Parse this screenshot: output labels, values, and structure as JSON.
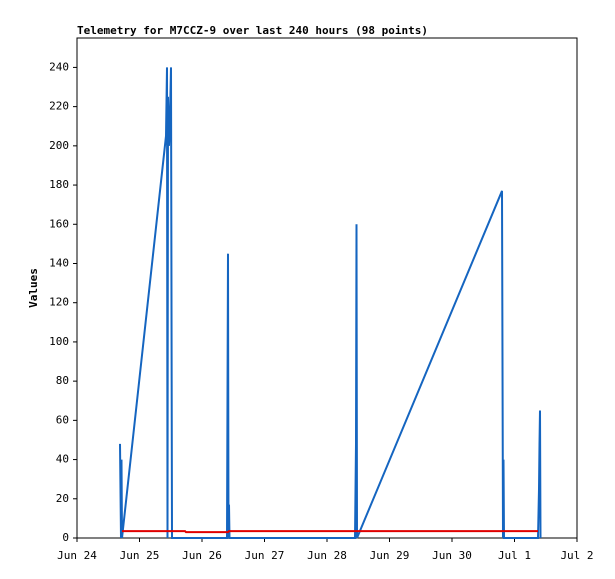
{
  "chart_data": {
    "type": "line",
    "title": "Telemetry for M7CCZ-9 over last 240 hours (98 points)",
    "y_label": "Values",
    "xlim": [
      0,
      8
    ],
    "xticks": [
      {
        "value": 0,
        "label": "Jun 24"
      },
      {
        "value": 1,
        "label": "Jun 25"
      },
      {
        "value": 2,
        "label": "Jun 26"
      },
      {
        "value": 3,
        "label": "Jun 27"
      },
      {
        "value": 4,
        "label": "Jun 28"
      },
      {
        "value": 5,
        "label": "Jun 29"
      },
      {
        "value": 6,
        "label": "Jun 30"
      },
      {
        "value": 7,
        "label": "Jul 1"
      },
      {
        "value": 8,
        "label": "Jul 2"
      }
    ],
    "ylim": [
      0,
      255
    ],
    "yticks": [
      0,
      20,
      40,
      60,
      80,
      100,
      120,
      140,
      160,
      180,
      200,
      220,
      240
    ],
    "series": [
      {
        "color": "#1565c0",
        "x": [
          0.688,
          0.704,
          0.712,
          0.72,
          1.424,
          1.44,
          1.448,
          1.456,
          1.472,
          1.488,
          1.504,
          1.52,
          2.4,
          2.416,
          2.424,
          2.432,
          2.44,
          4.448,
          4.464,
          4.472,
          4.48,
          6.8,
          6.816,
          6.824,
          6.832,
          7.376,
          7.392,
          7.4,
          7.408,
          7.416
        ],
        "values": [
          48,
          0,
          40,
          0,
          205,
          240,
          0,
          225,
          200,
          215,
          240,
          0,
          0,
          145,
          0,
          17,
          0,
          0,
          48,
          160,
          0,
          177,
          0,
          40,
          0,
          0,
          25,
          48,
          65,
          0
        ]
      },
      {
        "color": "#e00000",
        "x": [
          0.72,
          1.728,
          1.744,
          2.416,
          2.432,
          7.376
        ],
        "values": [
          3.5,
          3.5,
          3,
          3,
          3.5,
          3.5
        ]
      }
    ]
  }
}
